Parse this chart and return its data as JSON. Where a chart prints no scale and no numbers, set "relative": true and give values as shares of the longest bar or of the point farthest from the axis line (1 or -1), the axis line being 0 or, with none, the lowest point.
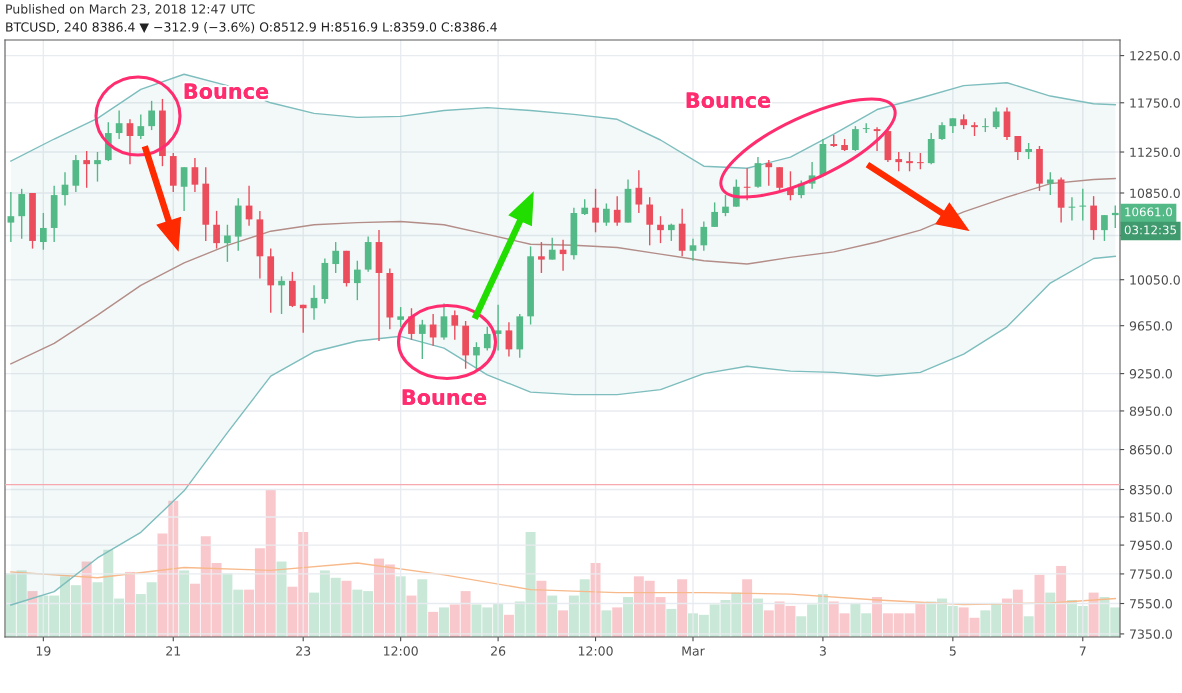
{
  "chart_data": [
    {
      "type": "candlestick",
      "title": "Published on March 23, 2018 12:47 UTC",
      "subtitle": "BTCUSD, 240 8386.4 ▼ −312.9 (−3.6%) O:8512.9 H:8516.9 L:8359.0 C:8386.4",
      "x": [
        "2018-02-18T12:00",
        "2018-02-18T16:00",
        "2018-02-18T20:00",
        "2018-02-19T00:00",
        "2018-02-19T04:00",
        "2018-02-19T08:00",
        "2018-02-19T12:00",
        "2018-02-19T16:00",
        "2018-02-19T20:00",
        "2018-02-20T00:00",
        "2018-02-20T04:00",
        "2018-02-20T08:00",
        "2018-02-20T12:00",
        "2018-02-20T16:00",
        "2018-02-20T20:00",
        "2018-02-21T00:00",
        "2018-02-21T04:00",
        "2018-02-21T08:00",
        "2018-02-21T12:00",
        "2018-02-21T16:00",
        "2018-02-21T20:00",
        "2018-02-22T00:00",
        "2018-02-22T04:00",
        "2018-02-22T08:00",
        "2018-02-22T12:00",
        "2018-02-22T16:00",
        "2018-02-22T20:00",
        "2018-02-23T00:00",
        "2018-02-23T04:00",
        "2018-02-23T08:00",
        "2018-02-23T12:00",
        "2018-02-23T16:00",
        "2018-02-23T20:00",
        "2018-02-24T00:00",
        "2018-02-24T04:00",
        "2018-02-24T08:00",
        "2018-02-24T12:00",
        "2018-02-24T16:00",
        "2018-02-24T20:00",
        "2018-02-25T00:00",
        "2018-02-25T04:00",
        "2018-02-25T08:00",
        "2018-02-25T12:00",
        "2018-02-25T16:00",
        "2018-02-25T20:00",
        "2018-02-26T00:00",
        "2018-02-26T04:00",
        "2018-02-26T08:00",
        "2018-02-26T12:00",
        "2018-02-26T16:00",
        "2018-02-26T20:00",
        "2018-02-27T00:00",
        "2018-02-27T04:00",
        "2018-02-27T08:00",
        "2018-02-27T12:00",
        "2018-02-27T16:00",
        "2018-02-27T20:00",
        "2018-02-28T00:00",
        "2018-02-28T04:00",
        "2018-02-28T08:00",
        "2018-02-28T12:00",
        "2018-02-28T16:00",
        "2018-02-28T20:00",
        "2018-03-01T00:00",
        "2018-03-01T04:00",
        "2018-03-01T08:00",
        "2018-03-01T12:00",
        "2018-03-01T16:00",
        "2018-03-01T20:00",
        "2018-03-02T00:00",
        "2018-03-02T04:00",
        "2018-03-02T08:00",
        "2018-03-02T12:00",
        "2018-03-02T16:00",
        "2018-03-02T20:00",
        "2018-03-03T00:00",
        "2018-03-03T04:00",
        "2018-03-03T08:00",
        "2018-03-03T12:00",
        "2018-03-03T16:00",
        "2018-03-03T20:00",
        "2018-03-04T00:00",
        "2018-03-04T04:00",
        "2018-03-04T08:00",
        "2018-03-04T12:00",
        "2018-03-04T16:00",
        "2018-03-04T20:00",
        "2018-03-05T00:00",
        "2018-03-05T04:00",
        "2018-03-05T08:00",
        "2018-03-05T12:00",
        "2018-03-05T16:00",
        "2018-03-05T20:00",
        "2018-03-06T00:00",
        "2018-03-06T04:00",
        "2018-03-06T08:00",
        "2018-03-06T12:00",
        "2018-03-06T16:00",
        "2018-03-06T20:00",
        "2018-03-07T00:00",
        "2018-03-07T04:00",
        "2018-03-07T08:00",
        "2018-03-07T12:00"
      ],
      "ohlc": [
        [
          10570,
          10860,
          10390,
          10630
        ],
        [
          10630,
          10890,
          10420,
          10840
        ],
        [
          10850,
          10850,
          10330,
          10400
        ],
        [
          10390,
          10660,
          10320,
          10520
        ],
        [
          10520,
          10920,
          10390,
          10830
        ],
        [
          10830,
          11050,
          10730,
          10930
        ],
        [
          10920,
          11220,
          10860,
          11170
        ],
        [
          11170,
          11260,
          10900,
          11130
        ],
        [
          11130,
          11250,
          10960,
          11170
        ],
        [
          11170,
          11550,
          11160,
          11440
        ],
        [
          11440,
          11670,
          11380,
          11540
        ],
        [
          11540,
          11580,
          11130,
          11410
        ],
        [
          11410,
          11630,
          11380,
          11510
        ],
        [
          11510,
          11770,
          11470,
          11670
        ],
        [
          11670,
          11790,
          11110,
          11210
        ],
        [
          11210,
          11240,
          10860,
          10920
        ],
        [
          10910,
          11100,
          10680,
          11100
        ],
        [
          11100,
          11190,
          10860,
          10930
        ],
        [
          10940,
          11100,
          10400,
          10550
        ],
        [
          10550,
          10680,
          10330,
          10380
        ],
        [
          10380,
          10550,
          10210,
          10450
        ],
        [
          10440,
          10800,
          10310,
          10730
        ],
        [
          10730,
          10920,
          10540,
          10600
        ],
        [
          10600,
          10680,
          10060,
          10260
        ],
        [
          10260,
          10330,
          9760,
          10000
        ],
        [
          10000,
          10080,
          9750,
          10040
        ],
        [
          10040,
          10120,
          9810,
          9820
        ],
        [
          9830,
          9830,
          9590,
          9800
        ],
        [
          9800,
          10000,
          9700,
          9890
        ],
        [
          9880,
          10240,
          9840,
          10200
        ],
        [
          10190,
          10390,
          10110,
          10310
        ],
        [
          10310,
          10310,
          9990,
          10020
        ],
        [
          10020,
          10220,
          9870,
          10140
        ],
        [
          10140,
          10440,
          10120,
          10390
        ],
        [
          10390,
          10500,
          9520,
          10110
        ],
        [
          10110,
          10150,
          9620,
          9720
        ],
        [
          9700,
          9810,
          9640,
          9730
        ],
        [
          9730,
          9800,
          9530,
          9580
        ],
        [
          9580,
          9700,
          9370,
          9660
        ],
        [
          9660,
          9750,
          9480,
          9550
        ],
        [
          9550,
          9840,
          9530,
          9730
        ],
        [
          9740,
          9780,
          9530,
          9650
        ],
        [
          9650,
          9690,
          9290,
          9400
        ],
        [
          9400,
          9510,
          9280,
          9470
        ],
        [
          9460,
          9640,
          9440,
          9580
        ],
        [
          9580,
          9830,
          9440,
          9610
        ],
        [
          9610,
          9680,
          9390,
          9450
        ],
        [
          9450,
          9750,
          9380,
          9730
        ],
        [
          9730,
          10350,
          9660,
          10260
        ],
        [
          10260,
          10390,
          10110,
          10230
        ],
        [
          10230,
          10430,
          10230,
          10320
        ],
        [
          10320,
          10410,
          10130,
          10280
        ],
        [
          10270,
          10710,
          10230,
          10660
        ],
        [
          10650,
          10790,
          10640,
          10710
        ],
        [
          10710,
          10890,
          10480,
          10570
        ],
        [
          10570,
          10750,
          10540,
          10700
        ],
        [
          10690,
          10820,
          10540,
          10570
        ],
        [
          10570,
          10980,
          10570,
          10890
        ],
        [
          10900,
          11070,
          10660,
          10740
        ],
        [
          10740,
          10810,
          10360,
          10550
        ],
        [
          10550,
          10630,
          10380,
          10500
        ],
        [
          10500,
          10560,
          10400,
          10550
        ],
        [
          10560,
          10700,
          10260,
          10310
        ],
        [
          10310,
          10420,
          10220,
          10360
        ],
        [
          10360,
          10580,
          10310,
          10530
        ],
        [
          10530,
          10760,
          10530,
          10670
        ],
        [
          10660,
          10830,
          10630,
          10720
        ],
        [
          10720,
          10980,
          10720,
          10910
        ],
        [
          10910,
          11090,
          10780,
          10900
        ],
        [
          10910,
          11200,
          10900,
          11140
        ],
        [
          11140,
          11170,
          10920,
          11100
        ],
        [
          11100,
          11100,
          10860,
          10900
        ],
        [
          10900,
          11060,
          10780,
          10830
        ],
        [
          10830,
          10970,
          10800,
          10940
        ],
        [
          10940,
          11150,
          10890,
          11020
        ],
        [
          11020,
          11380,
          11010,
          11330
        ],
        [
          11330,
          11420,
          11300,
          11310
        ],
        [
          11320,
          11380,
          11260,
          11270
        ],
        [
          11270,
          11510,
          11260,
          11480
        ],
        [
          11480,
          11540,
          11440,
          11490
        ],
        [
          11480,
          11500,
          11260,
          11460
        ],
        [
          11460,
          11500,
          11150,
          11170
        ],
        [
          11180,
          11250,
          11060,
          11150
        ],
        [
          11160,
          11250,
          11060,
          11140
        ],
        [
          11150,
          11240,
          11080,
          11140
        ],
        [
          11140,
          11440,
          11130,
          11380
        ],
        [
          11380,
          11550,
          11370,
          11520
        ],
        [
          11510,
          11590,
          11440,
          11590
        ],
        [
          11580,
          11630,
          11480,
          11520
        ],
        [
          11520,
          11550,
          11410,
          11500
        ],
        [
          11500,
          11590,
          11450,
          11510
        ],
        [
          11500,
          11700,
          11480,
          11660
        ],
        [
          11660,
          11700,
          11370,
          11400
        ],
        [
          11410,
          11410,
          11170,
          11250
        ],
        [
          11250,
          11340,
          11180,
          11280
        ],
        [
          11280,
          11310,
          10870,
          10940
        ],
        [
          10940,
          11050,
          10830,
          10980
        ],
        [
          10980,
          11000,
          10570,
          10710
        ],
        [
          10710,
          10810,
          10590,
          10720
        ],
        [
          10720,
          10890,
          10590,
          10730
        ],
        [
          10730,
          10820,
          10410,
          10500
        ],
        [
          10500,
          10640,
          10400,
          10640
        ],
        [
          10640,
          10730,
          10520,
          10661
        ]
      ],
      "colors": [
        "#53b987",
        "#53b987",
        "#eb4d5c",
        "#53b987",
        "#53b987",
        "#53b987",
        "#53b987",
        "#eb4d5c",
        "#53b987",
        "#53b987",
        "#53b987",
        "#eb4d5c",
        "#53b987",
        "#53b987",
        "#eb4d5c",
        "#eb4d5c",
        "#53b987",
        "#eb4d5c",
        "#eb4d5c",
        "#eb4d5c",
        "#53b987",
        "#53b987",
        "#eb4d5c",
        "#eb4d5c",
        "#eb4d5c",
        "#53b987",
        "#eb4d5c",
        "#eb4d5c",
        "#53b987",
        "#53b987",
        "#53b987",
        "#eb4d5c",
        "#53b987",
        "#53b987",
        "#eb4d5c",
        "#eb4d5c",
        "#53b987",
        "#eb4d5c",
        "#53b987",
        "#eb4d5c",
        "#53b987",
        "#eb4d5c",
        "#eb4d5c",
        "#53b987",
        "#53b987",
        "#53b987",
        "#eb4d5c",
        "#53b987",
        "#53b987",
        "#eb4d5c",
        "#53b987",
        "#eb4d5c",
        "#53b987",
        "#53b987",
        "#eb4d5c",
        "#53b987",
        "#eb4d5c",
        "#53b987",
        "#eb4d5c",
        "#eb4d5c",
        "#eb4d5c",
        "#53b987",
        "#eb4d5c",
        "#53b987",
        "#53b987",
        "#53b987",
        "#53b987",
        "#53b987",
        "#eb4d5c",
        "#53b987",
        "#eb4d5c",
        "#eb4d5c",
        "#eb4d5c",
        "#53b987",
        "#53b987",
        "#53b987",
        "#eb4d5c",
        "#eb4d5c",
        "#53b987",
        "#53b987",
        "#eb4d5c",
        "#eb4d5c",
        "#eb4d5c",
        "#eb4d5c",
        "#eb4d5c",
        "#53b987",
        "#53b987",
        "#53b987",
        "#eb4d5c",
        "#eb4d5c",
        "#53b987",
        "#53b987",
        "#eb4d5c",
        "#eb4d5c",
        "#53b987",
        "#eb4d5c",
        "#53b987",
        "#eb4d5c",
        "#53b987",
        "#53b987",
        "#eb4d5c",
        "#53b987",
        "#53b987"
      ],
      "series": [
        {
          "type": "line",
          "color": "#7dbdbd",
          "x": [
            "2018-02-18T12:00",
            "2018-02-19T04:00",
            "2018-02-19T20:00",
            "2018-02-20T12:00",
            "2018-02-21T04:00",
            "2018-02-21T20:00",
            "2018-02-22T12:00",
            "2018-02-23T04:00",
            "2018-02-23T20:00",
            "2018-02-24T12:00",
            "2018-02-25T04:00",
            "2018-02-25T20:00",
            "2018-02-26T12:00",
            "2018-02-27T04:00",
            "2018-02-27T20:00",
            "2018-02-28T12:00",
            "2018-03-01T04:00",
            "2018-03-01T20:00",
            "2018-03-02T12:00",
            "2018-03-03T04:00",
            "2018-03-03T20:00",
            "2018-03-04T12:00",
            "2018-03-05T04:00",
            "2018-03-05T20:00",
            "2018-03-06T12:00",
            "2018-03-07T04:00",
            "2018-03-07T12:00"
          ],
          "values": [
            11160,
            11380,
            11590,
            11890,
            12050,
            11930,
            11750,
            11640,
            11600,
            11610,
            11670,
            11700,
            11670,
            11630,
            11580,
            11370,
            11110,
            11090,
            11200,
            11430,
            11680,
            11800,
            11930,
            11960,
            11820,
            11740,
            11730
          ]
        },
        {
          "type": "line",
          "color": "#b38d88",
          "upper": [
            11160,
            11380,
            11590,
            11890,
            12050,
            11930,
            11750,
            11640,
            11600,
            11610,
            11670,
            11700,
            11670,
            11630,
            11580,
            11370,
            11110,
            11090,
            11200,
            11430,
            11680,
            11800,
            11930,
            11960,
            11820,
            11740,
            11730
          ],
          "lower": [
            7540,
            7630,
            7860,
            8040,
            8340,
            8780,
            9230,
            9430,
            9520,
            9560,
            9460,
            9240,
            9100,
            9080,
            9080,
            9120,
            9250,
            9310,
            9270,
            9260,
            9230,
            9260,
            9410,
            9640,
            10020,
            10240,
            10260
          ],
          "x": [
            "2018-02-18T12:00",
            "2018-02-19T04:00",
            "2018-02-19T20:00",
            "2018-02-20T12:00",
            "2018-02-21T04:00",
            "2018-02-21T20:00",
            "2018-02-22T12:00",
            "2018-02-23T04:00",
            "2018-02-23T20:00",
            "2018-02-24T12:00",
            "2018-02-25T04:00",
            "2018-02-25T20:00",
            "2018-02-26T12:00",
            "2018-02-27T04:00",
            "2018-02-27T20:00",
            "2018-02-28T12:00",
            "2018-03-01T04:00",
            "2018-03-01T20:00",
            "2018-03-02T12:00",
            "2018-03-03T04:00",
            "2018-03-03T20:00",
            "2018-03-04T12:00",
            "2018-03-05T04:00",
            "2018-03-05T20:00",
            "2018-03-06T12:00",
            "2018-03-07T04:00",
            "2018-03-07T12:00"
          ],
          "values": [
            9330,
            9500,
            9740,
            10000,
            10200,
            10360,
            10490,
            10550,
            10570,
            10580,
            10550,
            10460,
            10370,
            10360,
            10340,
            10280,
            10220,
            10190,
            10250,
            10300,
            10390,
            10500,
            10670,
            10810,
            10940,
            10980,
            10990
          ]
        },
        {
          "type": "line",
          "color": "#7dbdbd",
          "x": [
            "2018-02-18T12:00",
            "2018-02-19T04:00",
            "2018-02-19T20:00",
            "2018-02-20T12:00",
            "2018-02-21T04:00",
            "2018-02-21T20:00",
            "2018-02-22T12:00",
            "2018-02-23T04:00",
            "2018-02-23T20:00",
            "2018-02-24T12:00",
            "2018-02-25T04:00",
            "2018-02-25T20:00",
            "2018-02-26T12:00",
            "2018-02-27T04:00",
            "2018-02-27T20:00",
            "2018-02-28T12:00",
            "2018-03-01T04:00",
            "2018-03-01T20:00",
            "2018-03-02T12:00",
            "2018-03-03T04:00",
            "2018-03-03T20:00",
            "2018-03-04T12:00",
            "2018-03-05T04:00",
            "2018-03-05T20:00",
            "2018-03-06T12:00",
            "2018-03-07T04:00",
            "2018-03-07T12:00"
          ],
          "values": [
            7540,
            7630,
            7860,
            8040,
            8340,
            8780,
            9230,
            9430,
            9520,
            9560,
            9460,
            9240,
            9100,
            9080,
            9080,
            9120,
            9250,
            9310,
            9270,
            9260,
            9230,
            9260,
            9410,
            9640,
            10020,
            10240,
            10260
          ]
        }
      ],
      "xlim": [
        "2018-02-18T09:50",
        "2018-03-07T13:45"
      ],
      "xticks": [
        {
          "value": "2018-02-19",
          "label": "19"
        },
        {
          "value": "2018-02-21",
          "label": "21"
        },
        {
          "value": "2018-02-23",
          "label": "23"
        },
        {
          "value": "2018-02-24T12:00",
          "label": "12:00"
        },
        {
          "value": "2018-02-26",
          "label": "26"
        },
        {
          "value": "2018-02-27T12:00",
          "label": "12:00"
        },
        {
          "value": "2018-03-01",
          "label": "Mar"
        },
        {
          "value": "2018-03-03",
          "label": "3"
        },
        {
          "value": "2018-03-05",
          "label": "5"
        },
        {
          "value": "2018-03-07",
          "label": "7"
        }
      ],
      "log": true,
      "ylim": [
        7330,
        12420
      ],
      "yticks": [
        {
          "value": 7350,
          "label": "7350.0"
        },
        {
          "value": 7550,
          "label": "7550.0"
        },
        {
          "value": 7750,
          "label": "7750.0"
        },
        {
          "value": 7950,
          "label": "7950.0"
        },
        {
          "value": 8150,
          "label": "8150.0"
        },
        {
          "value": 8350,
          "label": "8350.0"
        },
        {
          "value": 8650,
          "label": "8650.0"
        },
        {
          "value": 8950,
          "label": "8950.0"
        },
        {
          "value": 9250,
          "label": "9250.0"
        },
        {
          "value": 9650,
          "label": "9650.0"
        },
        {
          "value": 10050,
          "label": "10050.0"
        },
        {
          "value": 10450,
          "label": null
        },
        {
          "value": 10850,
          "label": "10850.0"
        },
        {
          "value": 11250,
          "label": "11250.0"
        },
        {
          "value": 11750,
          "label": "11750.0"
        },
        {
          "value": 12250,
          "label": "12250.0"
        }
      ],
      "grid": true,
      "ref_lines": [
        {
          "axis": "y",
          "value": 8386.4,
          "color": "#f6a8ae"
        }
      ],
      "annotations": [
        "Bounce",
        "Bounce",
        "Bounce",
        {
          "text": "10661.0",
          "x": "2018-03-07T12:00",
          "y": 10661
        },
        "03:12:35"
      ]
    },
    {
      "type": "bar",
      "relative": true,
      "x": [
        "2018-02-18T12:00",
        "2018-02-18T16:00",
        "2018-02-18T20:00",
        "2018-02-19T00:00",
        "2018-02-19T04:00",
        "2018-02-19T08:00",
        "2018-02-19T12:00",
        "2018-02-19T16:00",
        "2018-02-19T20:00",
        "2018-02-20T00:00",
        "2018-02-20T04:00",
        "2018-02-20T08:00",
        "2018-02-20T12:00",
        "2018-02-20T16:00",
        "2018-02-20T20:00",
        "2018-02-21T00:00",
        "2018-02-21T04:00",
        "2018-02-21T08:00",
        "2018-02-21T12:00",
        "2018-02-21T16:00",
        "2018-02-21T20:00",
        "2018-02-22T00:00",
        "2018-02-22T04:00",
        "2018-02-22T08:00",
        "2018-02-22T12:00",
        "2018-02-22T16:00",
        "2018-02-22T20:00",
        "2018-02-23T00:00",
        "2018-02-23T04:00",
        "2018-02-23T08:00",
        "2018-02-23T12:00",
        "2018-02-23T16:00",
        "2018-02-23T20:00",
        "2018-02-24T00:00",
        "2018-02-24T04:00",
        "2018-02-24T08:00",
        "2018-02-24T12:00",
        "2018-02-24T16:00",
        "2018-02-24T20:00",
        "2018-02-25T00:00",
        "2018-02-25T04:00",
        "2018-02-25T08:00",
        "2018-02-25T12:00",
        "2018-02-25T16:00",
        "2018-02-25T20:00",
        "2018-02-26T00:00",
        "2018-02-26T04:00",
        "2018-02-26T08:00",
        "2018-02-26T12:00",
        "2018-02-26T16:00",
        "2018-02-26T20:00",
        "2018-02-27T00:00",
        "2018-02-27T04:00",
        "2018-02-27T08:00",
        "2018-02-27T12:00",
        "2018-02-27T16:00",
        "2018-02-27T20:00",
        "2018-02-28T00:00",
        "2018-02-28T04:00",
        "2018-02-28T08:00",
        "2018-02-28T12:00",
        "2018-02-28T16:00",
        "2018-02-28T20:00",
        "2018-03-01T00:00",
        "2018-03-01T04:00",
        "2018-03-01T08:00",
        "2018-03-01T12:00",
        "2018-03-01T16:00",
        "2018-03-01T20:00",
        "2018-03-02T00:00",
        "2018-03-02T04:00",
        "2018-03-02T08:00",
        "2018-03-02T12:00",
        "2018-03-02T16:00",
        "2018-03-02T20:00",
        "2018-03-03T00:00",
        "2018-03-03T04:00",
        "2018-03-03T08:00",
        "2018-03-03T12:00",
        "2018-03-03T16:00",
        "2018-03-03T20:00",
        "2018-03-04T00:00",
        "2018-03-04T04:00",
        "2018-03-04T08:00",
        "2018-03-04T12:00",
        "2018-03-04T16:00",
        "2018-03-04T20:00",
        "2018-03-05T00:00",
        "2018-03-05T04:00",
        "2018-03-05T08:00",
        "2018-03-05T12:00",
        "2018-03-05T16:00",
        "2018-03-05T20:00",
        "2018-03-06T00:00",
        "2018-03-06T04:00",
        "2018-03-06T08:00",
        "2018-03-06T12:00",
        "2018-03-06T16:00",
        "2018-03-06T20:00",
        "2018-03-07T00:00",
        "2018-03-07T04:00",
        "2018-03-07T08:00",
        "2018-03-07T12:00"
      ],
      "xlim": [
        "2018-02-18T09:50",
        "2018-03-07T13:45"
      ],
      "series": [
        {
          "type": "bar",
          "values": [
            0.43,
            0.45,
            0.31,
            0.28,
            0.28,
            0.41,
            0.35,
            0.51,
            0.37,
            0.59,
            0.26,
            0.44,
            0.29,
            0.37,
            0.7,
            0.92,
            0.45,
            0.36,
            0.68,
            0.5,
            0.43,
            0.32,
            0.32,
            0.6,
            1,
            0.51,
            0.34,
            0.71,
            0.3,
            0.45,
            0.4,
            0.38,
            0.32,
            0.31,
            0.53,
            0.49,
            0.41,
            0.28,
            0.39,
            0.17,
            0.2,
            0.22,
            0.31,
            0.22,
            0.2,
            0.23,
            0.15,
            0.24,
            0.71,
            0.38,
            0.28,
            0.18,
            0.28,
            0.39,
            0.5,
            0.18,
            0.2,
            0.27,
            0.41,
            0.38,
            0.27,
            0.19,
            0.39,
            0.16,
            0.15,
            0.22,
            0.25,
            0.3,
            0.39,
            0.26,
            0.18,
            0.24,
            0.21,
            0.14,
            0.22,
            0.29,
            0.24,
            0.16,
            0.23,
            0.16,
            0.27,
            0.16,
            0.16,
            0.16,
            0.23,
            0.24,
            0.26,
            0.21,
            0.2,
            0.13,
            0.18,
            0.23,
            0.26,
            0.32,
            0.14,
            0.42,
            0.3,
            0.48,
            0.25,
            0.21,
            0.3,
            0.27,
            0.2
          ],
          "colors": [
            "#c9e8d8",
            "#c9e8d8",
            "#f9c8cc",
            "#c9e8d8",
            "#c9e8d8",
            "#c9e8d8",
            "#c9e8d8",
            "#f9c8cc",
            "#c9e8d8",
            "#c9e8d8",
            "#c9e8d8",
            "#f9c8cc",
            "#c9e8d8",
            "#c9e8d8",
            "#f9c8cc",
            "#f9c8cc",
            "#c9e8d8",
            "#f9c8cc",
            "#f9c8cc",
            "#f9c8cc",
            "#c9e8d8",
            "#c9e8d8",
            "#f9c8cc",
            "#f9c8cc",
            "#f9c8cc",
            "#c9e8d8",
            "#f9c8cc",
            "#f9c8cc",
            "#c9e8d8",
            "#c9e8d8",
            "#c9e8d8",
            "#f9c8cc",
            "#c9e8d8",
            "#c9e8d8",
            "#f9c8cc",
            "#f9c8cc",
            "#c9e8d8",
            "#f9c8cc",
            "#c9e8d8",
            "#f9c8cc",
            "#c9e8d8",
            "#f9c8cc",
            "#f9c8cc",
            "#c9e8d8",
            "#c9e8d8",
            "#c9e8d8",
            "#f9c8cc",
            "#c9e8d8",
            "#c9e8d8",
            "#f9c8cc",
            "#c9e8d8",
            "#f9c8cc",
            "#c9e8d8",
            "#c9e8d8",
            "#f9c8cc",
            "#c9e8d8",
            "#f9c8cc",
            "#c9e8d8",
            "#f9c8cc",
            "#f9c8cc",
            "#f9c8cc",
            "#c9e8d8",
            "#f9c8cc",
            "#c9e8d8",
            "#c9e8d8",
            "#c9e8d8",
            "#c9e8d8",
            "#c9e8d8",
            "#f9c8cc",
            "#c9e8d8",
            "#f9c8cc",
            "#f9c8cc",
            "#f9c8cc",
            "#c9e8d8",
            "#c9e8d8",
            "#c9e8d8",
            "#f9c8cc",
            "#f9c8cc",
            "#c9e8d8",
            "#c9e8d8",
            "#f9c8cc",
            "#f9c8cc",
            "#f9c8cc",
            "#f9c8cc",
            "#f9c8cc",
            "#c9e8d8",
            "#c9e8d8",
            "#c9e8d8",
            "#f9c8cc",
            "#f9c8cc",
            "#c9e8d8",
            "#c9e8d8",
            "#f9c8cc",
            "#f9c8cc",
            "#c9e8d8",
            "#f9c8cc",
            "#c9e8d8",
            "#f9c8cc",
            "#c9e8d8",
            "#c9e8d8",
            "#f9c8cc",
            "#c9e8d8",
            "#c9e8d8"
          ]
        },
        {
          "type": "line",
          "color": "#f7b98a",
          "x": [
            "2018-02-18T12:00",
            "2018-02-19T20:00",
            "2018-02-21T04:00",
            "2018-02-22T12:00",
            "2018-02-23T20:00",
            "2018-02-25T04:00",
            "2018-02-26T12:00",
            "2018-02-27T20:00",
            "2018-03-01T04:00",
            "2018-03-02T12:00",
            "2018-03-03T20:00",
            "2018-03-05T04:00",
            "2018-03-06T12:00",
            "2018-03-07T12:00"
          ],
          "values": [
            0.44,
            0.4,
            0.47,
            0.45,
            0.5,
            0.42,
            0.32,
            0.3,
            0.3,
            0.29,
            0.25,
            0.22,
            0.23,
            0.26
          ]
        }
      ]
    }
  ]
}
